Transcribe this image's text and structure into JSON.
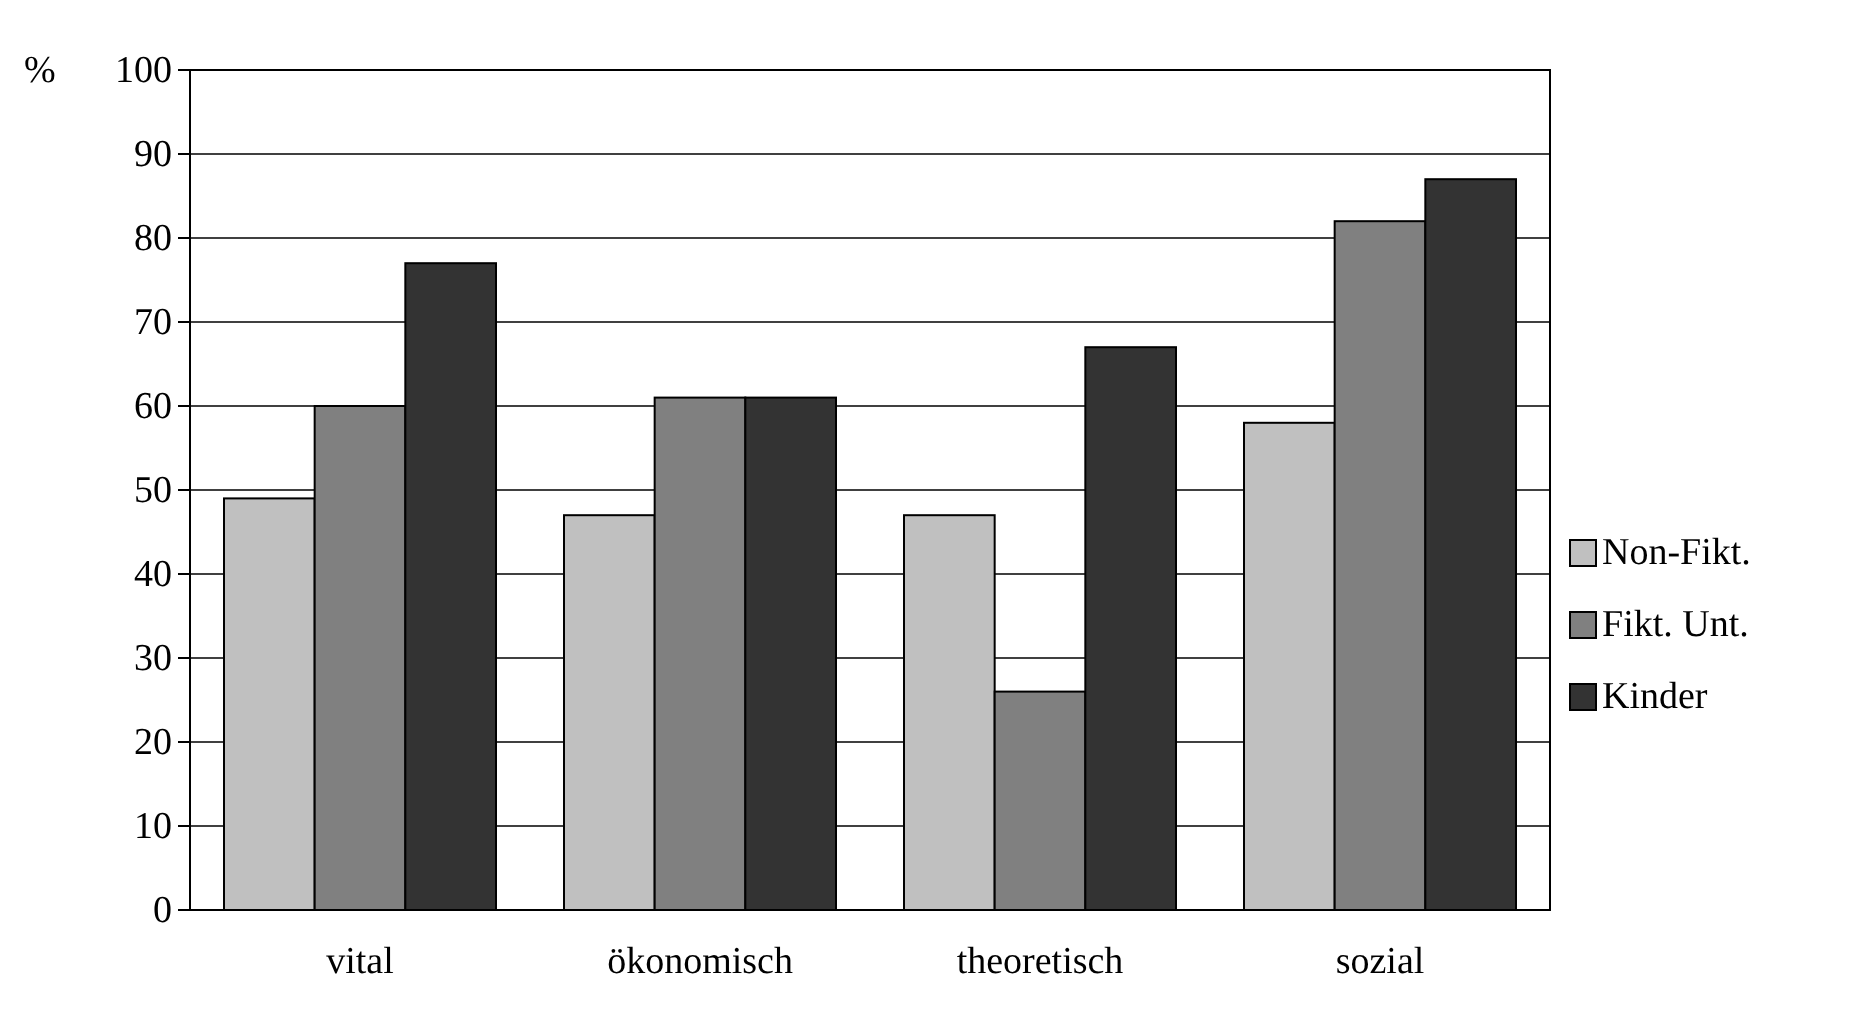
{
  "chart_data": {
    "type": "bar",
    "ylabel": "%",
    "categories": [
      "vital",
      "ökonomisch",
      "theoretisch",
      "sozial"
    ],
    "series": [
      {
        "name": "Non-Fikt.",
        "color": "#c0c0c0",
        "values": [
          49,
          47,
          47,
          58
        ]
      },
      {
        "name": "Fikt. Unt.",
        "color": "#808080",
        "values": [
          60,
          61,
          26,
          82
        ]
      },
      {
        "name": "Kinder",
        "color": "#333333",
        "values": [
          77,
          61,
          67,
          87
        ]
      }
    ],
    "ylim": [
      0,
      100
    ],
    "yticks": [
      0,
      10,
      20,
      30,
      40,
      50,
      60,
      70,
      80,
      90,
      100
    ],
    "grid": "y",
    "legend": "right"
  }
}
